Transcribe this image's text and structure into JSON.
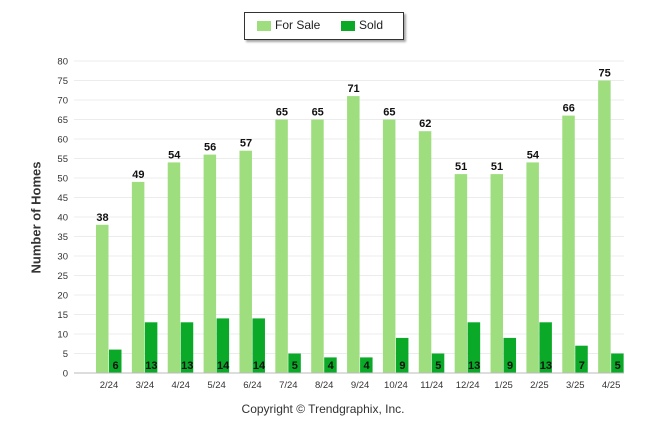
{
  "chart_data": {
    "type": "bar",
    "categories": [
      "2/24",
      "3/24",
      "4/24",
      "5/24",
      "6/24",
      "7/24",
      "8/24",
      "9/24",
      "10/24",
      "11/24",
      "12/24",
      "1/25",
      "2/25",
      "3/25",
      "4/25"
    ],
    "series": [
      {
        "name": "For Sale",
        "color": "#9ede7f",
        "values": [
          38,
          49,
          54,
          56,
          57,
          65,
          65,
          71,
          65,
          62,
          51,
          51,
          54,
          66,
          75
        ]
      },
      {
        "name": "Sold",
        "color": "#0aaa28",
        "values": [
          6,
          13,
          13,
          14,
          14,
          5,
          4,
          4,
          9,
          5,
          13,
          9,
          13,
          7,
          5
        ]
      }
    ],
    "ylabel": "Number of Homes",
    "ylim": [
      0,
      80
    ],
    "yticks": [
      0,
      5,
      10,
      15,
      20,
      25,
      30,
      35,
      40,
      45,
      50,
      55,
      60,
      65,
      70,
      75,
      80
    ],
    "grid": true,
    "legend": "top-center"
  },
  "footer": {
    "copyright": "Copyright © Trendgraphix, Inc."
  }
}
